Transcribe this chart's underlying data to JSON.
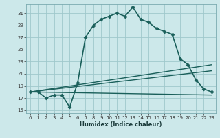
{
  "xlabel": "Humidex (Indice chaleur)",
  "ylabel": "",
  "bg_color": "#cce8ea",
  "grid_color": "#9fc8cc",
  "line_color": "#1a5f5a",
  "xlim": [
    -0.5,
    23.5
  ],
  "ylim": [
    14.5,
    32.5
  ],
  "yticks": [
    15,
    17,
    19,
    21,
    23,
    25,
    27,
    29,
    31
  ],
  "xticks": [
    0,
    1,
    2,
    3,
    4,
    5,
    6,
    7,
    8,
    9,
    10,
    11,
    12,
    13,
    14,
    15,
    16,
    17,
    18,
    19,
    20,
    21,
    22,
    23
  ],
  "series": [
    {
      "x": [
        0,
        1,
        2,
        3,
        4,
        5,
        6,
        7,
        8,
        9,
        10,
        11,
        12,
        13,
        14,
        15,
        16,
        17,
        18,
        19,
        20,
        21,
        22,
        23
      ],
      "y": [
        18,
        18,
        17,
        17.5,
        17.5,
        15.5,
        19.5,
        27,
        29,
        30,
        30.5,
        31.0,
        30.5,
        32.0,
        30.0,
        29.5,
        28.5,
        28.0,
        27.5,
        23.5,
        22.5,
        20.0,
        18.5,
        18.0
      ],
      "marker": "D",
      "markersize": 2.5,
      "linewidth": 1.2,
      "has_marker": true
    },
    {
      "x": [
        0,
        23
      ],
      "y": [
        18,
        17.5
      ],
      "marker": null,
      "linewidth": 1.0,
      "has_marker": false
    },
    {
      "x": [
        0,
        23
      ],
      "y": [
        18,
        22.5
      ],
      "marker": null,
      "linewidth": 1.0,
      "has_marker": false
    },
    {
      "x": [
        0,
        23
      ],
      "y": [
        18,
        21.5
      ],
      "marker": null,
      "linewidth": 1.0,
      "has_marker": false
    }
  ]
}
